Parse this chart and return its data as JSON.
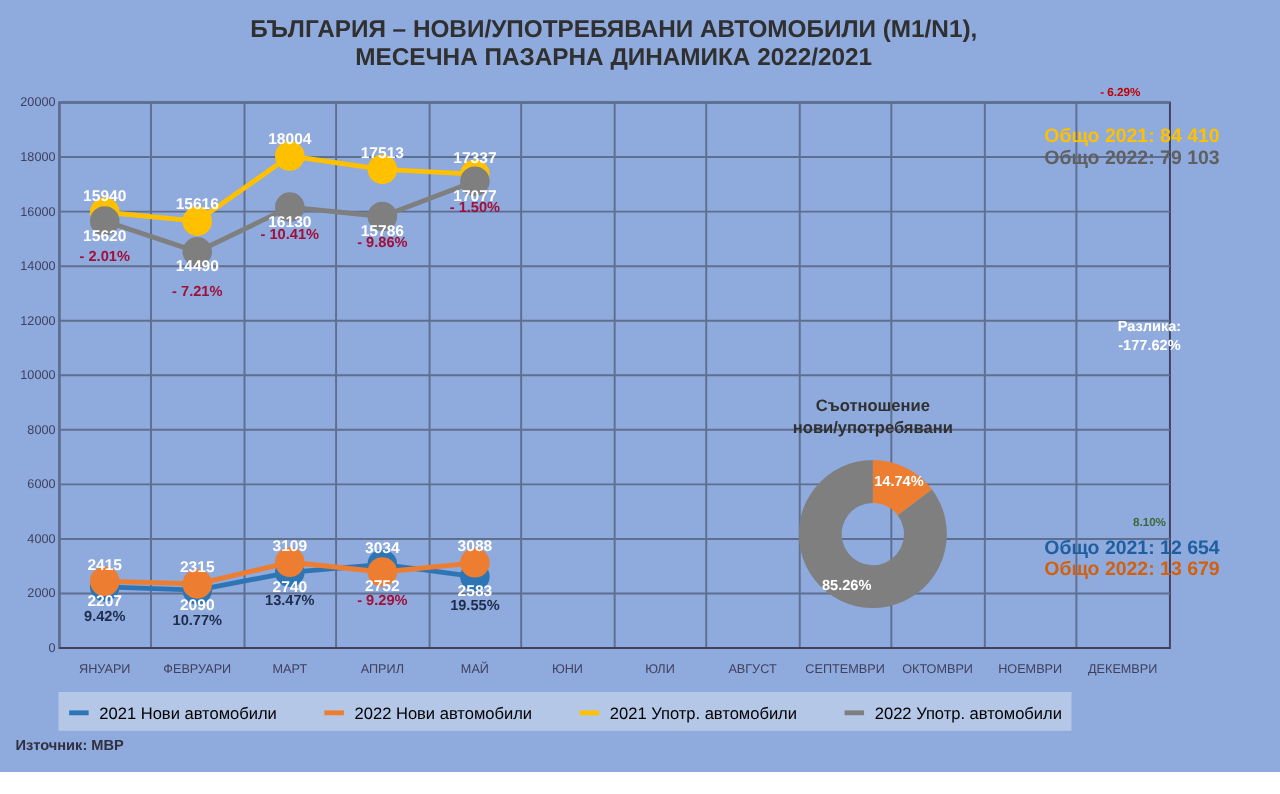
{
  "chart_data": [
    {
      "type": "line",
      "title": "БЪЛГАРИЯ – НОВИ/УПОТРЕБЯВАНИ  АВТОМОБИЛИ  (М1/N1),\nМЕСЕЧНА  ПАЗАРНА  ДИНАМИКА  2022/2021",
      "categories": [
        "ЯНУАРИ",
        "ФЕВРУАРИ",
        "МАРТ",
        "АПРИЛ",
        "МАЙ",
        "ЮНИ",
        "ЮЛИ",
        "АВГУСТ",
        "СЕПТЕМВРИ",
        "ОКТОМВРИ",
        "НОЕМВРИ",
        "ДЕКЕМВРИ"
      ],
      "series": [
        {
          "name": "2021 Нови автомобили",
          "color": "#2e75b6",
          "values": [
            2207,
            2090,
            2740,
            3034,
            2583,
            null,
            null,
            null,
            null,
            null,
            null,
            null
          ]
        },
        {
          "name": "2022 Нови автомобили",
          "color": "#ed7d31",
          "values": [
            2415,
            2315,
            3109,
            2752,
            3088,
            null,
            null,
            null,
            null,
            null,
            null,
            null
          ]
        },
        {
          "name": "2021 Употр. автомобили",
          "color": "#ffc000",
          "values": [
            15940,
            15616,
            18004,
            17513,
            17337,
            null,
            null,
            null,
            null,
            null,
            null,
            null
          ]
        },
        {
          "name": "2022 Употр. автомобили",
          "color": "#7f7f7f",
          "values": [
            15620,
            14490,
            16130,
            15786,
            17077,
            null,
            null,
            null,
            null,
            null,
            null,
            null
          ]
        }
      ],
      "data_labels": true,
      "marker": "circle",
      "ylim": [
        0,
        20000
      ],
      "yticks": [
        0,
        2000,
        4000,
        6000,
        8000,
        10000,
        12000,
        14000,
        16000,
        18000,
        20000
      ],
      "grid": true,
      "legend": "bottom",
      "annotations": [
        "- 2.01%",
        "- 7.21%",
        "- 10.41%",
        "- 9.86%",
        "- 1.50%",
        "9.42%",
        "10.77%",
        "13.47%",
        "- 9.29%",
        "19.55%",
        "- 6.29%",
        "Общо 2021: 84 410",
        "Общо 2022: 79 103",
        "Разлика:\n-177.62%",
        "8.10%",
        "Общо 2021: 12 654",
        "Общо 2022: 13 679",
        "Източник: МВР"
      ]
    },
    {
      "type": "donut",
      "title": "Съотношение нови/употребявани",
      "values": [
        14.74,
        85.26
      ],
      "colors": [
        "#ed7d31",
        "#7f7f7f"
      ],
      "value_labels": [
        "14.74%",
        "85.26%"
      ]
    }
  ]
}
